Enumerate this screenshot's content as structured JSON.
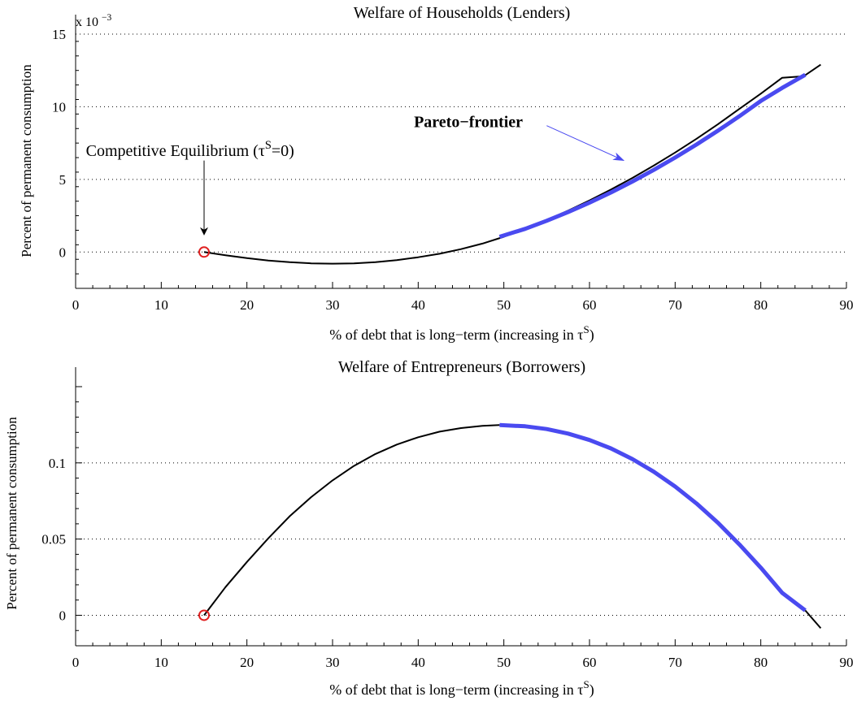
{
  "chart_data": [
    {
      "type": "line",
      "title": "Welfare of Households (Lenders)",
      "xlabel": "% of debt that is long−term (increasing in τ",
      "xlabel_sup": "S",
      "xlabel_close": ")",
      "ylabel": "Percent of permanent consumption",
      "y_multiplier": "x 10",
      "y_multiplier_exp": "−3",
      "xlim": [
        0,
        90
      ],
      "ylim": [
        -2.5,
        15
      ],
      "x_ticks": [
        "0",
        "10",
        "20",
        "30",
        "40",
        "50",
        "60",
        "70",
        "80",
        "90"
      ],
      "x_tick_values": [
        0,
        10,
        20,
        30,
        40,
        50,
        60,
        70,
        80,
        90
      ],
      "y_ticks": [
        "0",
        "5",
        "10",
        "15"
      ],
      "y_tick_values": [
        0,
        5,
        10,
        15
      ],
      "grid": "horizontal dotted",
      "series": [
        {
          "color": "#000000",
          "width": 2,
          "x": [
            15,
            17.5,
            20,
            22.5,
            25,
            27.5,
            30,
            32.5,
            35,
            37.5,
            40,
            42.5,
            45,
            47.5,
            50,
            52.5,
            55,
            57.5,
            60,
            62.5,
            65,
            67.5,
            70,
            72.5,
            75,
            77.5,
            80,
            82.5,
            85,
            87
          ],
          "y": [
            0,
            -0.22,
            -0.42,
            -0.58,
            -0.7,
            -0.78,
            -0.8,
            -0.78,
            -0.7,
            -0.56,
            -0.36,
            -0.12,
            0.2,
            0.58,
            1.05,
            1.6,
            2.2,
            2.85,
            3.55,
            4.3,
            5.1,
            5.95,
            6.85,
            7.8,
            8.8,
            9.85,
            10.9,
            12.0,
            12.1,
            12.9
          ]
        },
        {
          "name": "Pareto−frontier",
          "color": "#4a4af0",
          "width": 5,
          "x": [
            49.5,
            52.5,
            55,
            57.5,
            60,
            62.5,
            65,
            67.5,
            70,
            72.5,
            75,
            77.5,
            80,
            82.5,
            85.2
          ],
          "y": [
            1.05,
            1.6,
            2.15,
            2.75,
            3.4,
            4.1,
            4.85,
            5.65,
            6.5,
            7.4,
            8.35,
            9.35,
            10.4,
            11.3,
            12.2
          ]
        }
      ],
      "markers": [
        {
          "x": 15,
          "y": 0,
          "color": "#e02020"
        }
      ],
      "annotations": [
        {
          "label": "Competitive Equilibrium (τ",
          "label_sup": "S",
          "label_close": "=0)",
          "color": "#000000",
          "bold": false,
          "text_x": 1.2,
          "text_y": 6.6,
          "arrow_from": [
            15,
            6.3
          ],
          "arrow_to": [
            15,
            1.2
          ]
        },
        {
          "label": "Pareto−frontier",
          "color": "#4a4af0",
          "bold": true,
          "text_x": 39.5,
          "text_y": 8.6,
          "arrow_from": [
            55,
            8.7
          ],
          "arrow_to": [
            64,
            6.3
          ]
        }
      ]
    },
    {
      "type": "line",
      "title": "Welfare of Entrepreneurs (Borrowers)",
      "xlabel": "% of debt that is long−term (increasing in τ",
      "xlabel_sup": "S",
      "xlabel_close": ")",
      "ylabel": "Percent of permanent consumption",
      "xlim": [
        0,
        90
      ],
      "ylim": [
        -0.02,
        0.15
      ],
      "x_ticks": [
        "0",
        "10",
        "20",
        "30",
        "40",
        "50",
        "60",
        "70",
        "80",
        "90"
      ],
      "x_tick_values": [
        0,
        10,
        20,
        30,
        40,
        50,
        60,
        70,
        80,
        90
      ],
      "y_ticks": [
        "0",
        "0.05",
        "0.1"
      ],
      "y_tick_values": [
        0,
        0.05,
        0.1
      ],
      "grid": "horizontal dotted",
      "series": [
        {
          "color": "#000000",
          "width": 2,
          "x": [
            15,
            17.5,
            20,
            22.5,
            25,
            27.5,
            30,
            32.5,
            35,
            37.5,
            40,
            42.5,
            45,
            47.5,
            49.5
          ],
          "y": [
            0,
            0.0185,
            0.035,
            0.0505,
            0.065,
            0.0775,
            0.0885,
            0.098,
            0.1058,
            0.112,
            0.1168,
            0.1205,
            0.1228,
            0.1243,
            0.1248
          ]
        },
        {
          "color": "#4a4af0",
          "width": 5,
          "x": [
            49.5,
            52.5,
            55,
            57.5,
            60,
            62.5,
            65,
            67.5,
            70,
            72.5,
            75,
            77.5,
            80,
            82.5,
            85.2
          ],
          "y": [
            0.1248,
            0.124,
            0.1222,
            0.1192,
            0.115,
            0.1095,
            0.1025,
            0.0942,
            0.0845,
            0.0733,
            0.0607,
            0.0465,
            0.0312,
            0.0147,
            0.0032
          ]
        },
        {
          "color": "#000000",
          "width": 2,
          "x": [
            85.2,
            87
          ],
          "y": [
            0.0032,
            -0.0085
          ]
        }
      ],
      "markers": [
        {
          "x": 15,
          "y": 0,
          "color": "#e02020"
        }
      ],
      "annotations": []
    }
  ]
}
